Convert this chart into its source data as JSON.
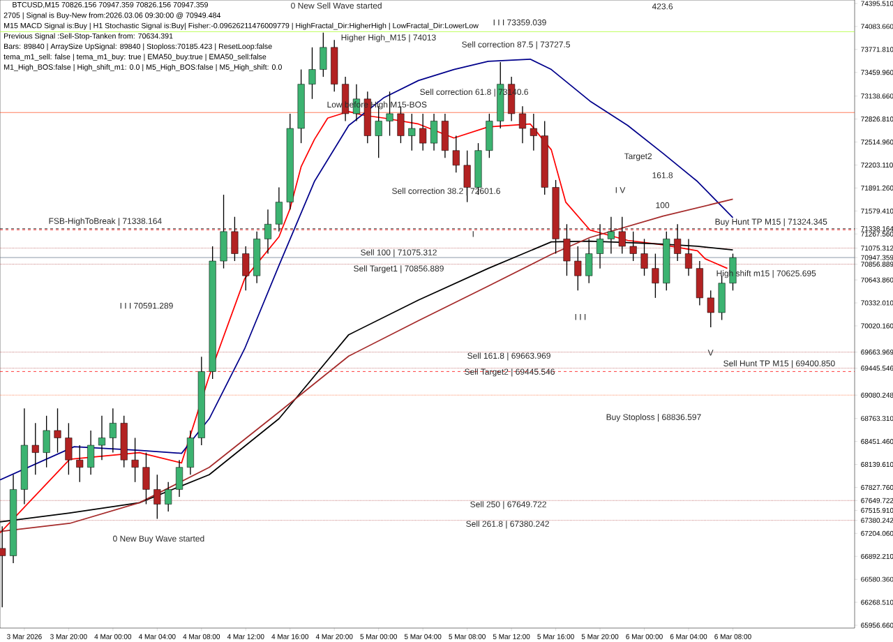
{
  "chart_data": {
    "type": "candlestick",
    "title": "BTCUSD,M15  70826.156 70947.359 70826.156 70947.359",
    "x": [
      "2026-03-03T14:00",
      "2026-03-03T15:00",
      "2026-03-03T16:00",
      "2026-03-03T17:00",
      "2026-03-03T18:00",
      "2026-03-03T19:00",
      "2026-03-03T20:00",
      "2026-03-03T21:00",
      "2026-03-03T22:00",
      "2026-03-03T23:00",
      "2026-03-04T00:00",
      "2026-03-04T01:00",
      "2026-03-04T02:00",
      "2026-03-04T03:00",
      "2026-03-04T04:00",
      "2026-03-04T05:00",
      "2026-03-04T06:00",
      "2026-03-04T07:00",
      "2026-03-04T08:00",
      "2026-03-04T09:00",
      "2026-03-04T10:00",
      "2026-03-04T11:00",
      "2026-03-04T12:00",
      "2026-03-04T13:00",
      "2026-03-04T14:00",
      "2026-03-04T15:00",
      "2026-03-04T16:00",
      "2026-03-04T17:00",
      "2026-03-04T18:00",
      "2026-03-04T19:00",
      "2026-03-04T20:00",
      "2026-03-04T21:00",
      "2026-03-04T22:00",
      "2026-03-04T23:00",
      "2026-03-05T00:00",
      "2026-03-05T01:00",
      "2026-03-05T02:00",
      "2026-03-05T03:00",
      "2026-03-05T04:00",
      "2026-03-05T05:00",
      "2026-03-05T06:00",
      "2026-03-05T07:00",
      "2026-03-05T08:00",
      "2026-03-05T09:00",
      "2026-03-05T10:00",
      "2026-03-05T11:00",
      "2026-03-05T12:00",
      "2026-03-05T13:00",
      "2026-03-05T14:00",
      "2026-03-05T15:00",
      "2026-03-05T16:00",
      "2026-03-05T17:00",
      "2026-03-05T18:00",
      "2026-03-05T19:00",
      "2026-03-05T20:00",
      "2026-03-05T21:00",
      "2026-03-05T22:00",
      "2026-03-05T23:00",
      "2026-03-06T00:00",
      "2026-03-06T01:00",
      "2026-03-06T02:00",
      "2026-03-06T03:00",
      "2026-03-06T04:00",
      "2026-03-06T05:00",
      "2026-03-06T06:00",
      "2026-03-06T07:00",
      "2026-03-06T08:00"
    ],
    "ohlc": [
      [
        67000,
        67300,
        66200,
        66900
      ],
      [
        66900,
        68000,
        66800,
        67800
      ],
      [
        67800,
        68900,
        67600,
        68400
      ],
      [
        68400,
        68700,
        68000,
        68300
      ],
      [
        68300,
        68800,
        68100,
        68600
      ],
      [
        68600,
        68900,
        68300,
        68500
      ],
      [
        68500,
        68700,
        68000,
        68200
      ],
      [
        68200,
        68400,
        67900,
        68100
      ],
      [
        68100,
        68600,
        68000,
        68400
      ],
      [
        68400,
        68800,
        68200,
        68500
      ],
      [
        68500,
        68900,
        68300,
        68700
      ],
      [
        68700,
        68800,
        68100,
        68200
      ],
      [
        68200,
        68500,
        67900,
        68100
      ],
      [
        68100,
        68300,
        67600,
        67800
      ],
      [
        67800,
        68000,
        67400,
        67600
      ],
      [
        67600,
        67900,
        67500,
        67800
      ],
      [
        67800,
        68200,
        67700,
        68100
      ],
      [
        68100,
        68600,
        68000,
        68500
      ],
      [
        68500,
        69600,
        68400,
        69400
      ],
      [
        69400,
        71100,
        69300,
        70900
      ],
      [
        70900,
        71800,
        70800,
        71300
      ],
      [
        71300,
        71500,
        70900,
        71000
      ],
      [
        71000,
        71100,
        70500,
        70700
      ],
      [
        70700,
        71300,
        70600,
        71200
      ],
      [
        71200,
        71600,
        71000,
        71400
      ],
      [
        71400,
        71900,
        71300,
        71700
      ],
      [
        71700,
        72900,
        71600,
        72700
      ],
      [
        72700,
        73500,
        72500,
        73300
      ],
      [
        73300,
        73800,
        73100,
        73500
      ],
      [
        73500,
        74000,
        73400,
        73800
      ],
      [
        73800,
        73900,
        73200,
        73300
      ],
      [
        73300,
        73400,
        72800,
        72900
      ],
      [
        72900,
        73300,
        72800,
        73100
      ],
      [
        73100,
        73200,
        72500,
        72600
      ],
      [
        72600,
        73000,
        72300,
        72800
      ],
      [
        72800,
        73200,
        72600,
        72900
      ],
      [
        72900,
        73000,
        72500,
        72600
      ],
      [
        72600,
        72900,
        72400,
        72700
      ],
      [
        72700,
        72900,
        72400,
        72500
      ],
      [
        72500,
        72900,
        72400,
        72800
      ],
      [
        72800,
        72900,
        72300,
        72400
      ],
      [
        72400,
        72600,
        72100,
        72200
      ],
      [
        72200,
        72400,
        71700,
        71900
      ],
      [
        71900,
        72500,
        71800,
        72400
      ],
      [
        72400,
        72900,
        72300,
        72800
      ],
      [
        72800,
        73600,
        72700,
        73300
      ],
      [
        73300,
        73400,
        72800,
        72900
      ],
      [
        72900,
        73000,
        72500,
        72700
      ],
      [
        72700,
        72900,
        72400,
        72600
      ],
      [
        72600,
        72800,
        71800,
        71900
      ],
      [
        71900,
        72000,
        71000,
        71200
      ],
      [
        71200,
        71400,
        70700,
        70900
      ],
      [
        70900,
        71100,
        70500,
        70700
      ],
      [
        70700,
        71200,
        70600,
        71000
      ],
      [
        71000,
        71400,
        70800,
        71200
      ],
      [
        71200,
        71500,
        71000,
        71300
      ],
      [
        71300,
        71500,
        71000,
        71100
      ],
      [
        71100,
        71300,
        70900,
        71000
      ],
      [
        71000,
        71200,
        70700,
        70800
      ],
      [
        70800,
        71000,
        70400,
        70600
      ],
      [
        70600,
        71300,
        70500,
        71200
      ],
      [
        71200,
        71400,
        70900,
        71000
      ],
      [
        71000,
        71200,
        70700,
        70800
      ],
      [
        70800,
        70900,
        70300,
        70400
      ],
      [
        70400,
        70500,
        70000,
        70200
      ],
      [
        70200,
        70700,
        70100,
        70600
      ],
      [
        70600,
        71000,
        70500,
        70947
      ]
    ],
    "colors": [
      "#b22222",
      "#3cb371",
      "#3cb371",
      "#b22222",
      "#3cb371",
      "#b22222",
      "#b22222",
      "#b22222",
      "#3cb371",
      "#3cb371",
      "#3cb371",
      "#b22222",
      "#b22222",
      "#b22222",
      "#b22222",
      "#3cb371",
      "#3cb371",
      "#3cb371",
      "#3cb371",
      "#3cb371",
      "#3cb371",
      "#b22222",
      "#b22222",
      "#3cb371",
      "#3cb371",
      "#3cb371",
      "#3cb371",
      "#3cb371",
      "#3cb371",
      "#3cb371",
      "#b22222",
      "#b22222",
      "#3cb371",
      "#b22222",
      "#3cb371",
      "#3cb371",
      "#b22222",
      "#3cb371",
      "#b22222",
      "#3cb371",
      "#b22222",
      "#b22222",
      "#b22222",
      "#3cb371",
      "#3cb371",
      "#3cb371",
      "#b22222",
      "#b22222",
      "#b22222",
      "#b22222",
      "#b22222",
      "#b22222",
      "#b22222",
      "#3cb371",
      "#3cb371",
      "#3cb371",
      "#b22222",
      "#b22222",
      "#b22222",
      "#b22222",
      "#3cb371",
      "#b22222",
      "#b22222",
      "#b22222",
      "#b22222",
      "#3cb371",
      "#3cb371"
    ],
    "series": [
      {
        "type": "line",
        "color": "#ff0000",
        "x": [
          "2026-03-03T13:48",
          "2026-03-03T20:06",
          "2026-03-04T02:24",
          "2026-03-04T06:12",
          "2026-03-04T08:42",
          "2026-03-04T11:54",
          "2026-03-04T15:00",
          "2026-03-04T16:00",
          "2026-03-04T17:00",
          "2026-03-04T18:12",
          "2026-03-04T19:24",
          "2026-03-04T21:18",
          "2026-03-04T22:36",
          "2026-03-05T00:30",
          "2026-03-05T03:36",
          "2026-03-05T06:48",
          "2026-03-05T09:54",
          "2026-03-05T13:42",
          "2026-03-05T15:36",
          "2026-03-05T16:54",
          "2026-03-05T19:06",
          "2026-03-05T22:30",
          "2026-03-06T01:42",
          "2026-03-06T04:48",
          "2026-03-06T05:30",
          "2026-03-06T07:30"
        ],
        "values": [
          67210,
          68210,
          68300,
          68160,
          69340,
          70660,
          71230,
          71610,
          72180,
          72550,
          72840,
          72930,
          72880,
          72840,
          72760,
          72570,
          72720,
          72760,
          72410,
          71700,
          71320,
          71180,
          71120,
          71040,
          70930,
          70800
        ]
      },
      {
        "type": "line",
        "color": "#00008b",
        "x": [
          "2026-03-03T13:48",
          "2026-03-03T20:30",
          "2026-03-04T02:24",
          "2026-03-04T06:12",
          "2026-03-04T08:42",
          "2026-03-04T11:54",
          "2026-03-04T15:00",
          "2026-03-04T18:12",
          "2026-03-04T21:18",
          "2026-03-05T00:30",
          "2026-03-05T03:36",
          "2026-03-05T06:48",
          "2026-03-05T09:54",
          "2026-03-05T13:42",
          "2026-03-05T15:36",
          "2026-03-05T19:06",
          "2026-03-05T22:30",
          "2026-03-06T01:42",
          "2026-03-06T04:48",
          "2026-03-06T08:00"
        ],
        "values": [
          67930,
          68380,
          68330,
          68290,
          68760,
          69710,
          70840,
          71980,
          72740,
          73120,
          73350,
          73500,
          73610,
          73640,
          73500,
          73070,
          72740,
          72360,
          71980,
          71490
        ]
      },
      {
        "type": "line",
        "color": "#000000",
        "x": [
          "2026-03-03T13:48",
          "2026-03-03T20:06",
          "2026-03-04T02:24",
          "2026-03-04T08:42",
          "2026-03-04T15:00",
          "2026-03-04T21:18",
          "2026-03-05T03:36",
          "2026-03-05T09:54",
          "2026-03-05T15:36",
          "2026-03-05T19:06",
          "2026-03-05T22:30",
          "2026-03-06T01:42",
          "2026-03-06T04:48",
          "2026-03-06T08:00"
        ],
        "values": [
          67360,
          67480,
          67620,
          68000,
          68760,
          69900,
          70370,
          70800,
          71160,
          71170,
          71150,
          71130,
          71100,
          71050
        ]
      },
      {
        "type": "line",
        "color": "#a52a2a",
        "x": [
          "2026-03-03T13:48",
          "2026-03-03T20:06",
          "2026-03-04T02:24",
          "2026-03-04T08:42",
          "2026-03-04T15:00",
          "2026-03-04T21:18",
          "2026-03-05T03:36",
          "2026-03-05T09:54",
          "2026-03-05T15:36",
          "2026-03-05T19:06",
          "2026-03-06T01:42",
          "2026-03-06T08:00"
        ],
        "values": [
          67230,
          67340,
          67620,
          68100,
          68850,
          69610,
          70090,
          70560,
          70990,
          71220,
          71510,
          71740
        ]
      }
    ],
    "xlim": [
      "2026-03-03T13:48",
      "2026-03-06T19:00"
    ],
    "ylim": [
      65919,
      74443
    ],
    "xticks": [
      {
        "value": "2026-03-03T16:00",
        "label": "3 Mar 2026"
      },
      {
        "value": "2026-03-03T20:00",
        "label": "3 Mar 20:00"
      },
      {
        "value": "2026-03-04T00:00",
        "label": "4 Mar 00:00"
      },
      {
        "value": "2026-03-04T04:00",
        "label": "4 Mar 04:00"
      },
      {
        "value": "2026-03-04T08:00",
        "label": "4 Mar 08:00"
      },
      {
        "value": "2026-03-04T12:00",
        "label": "4 Mar 12:00"
      },
      {
        "value": "2026-03-04T16:00",
        "label": "4 Mar 16:00"
      },
      {
        "value": "2026-03-04T20:00",
        "label": "4 Mar 20:00"
      },
      {
        "value": "2026-03-05T00:00",
        "label": "5 Mar 00:00"
      },
      {
        "value": "2026-03-05T04:00",
        "label": "5 Mar 04:00"
      },
      {
        "value": "2026-03-05T08:00",
        "label": "5 Mar 08:00"
      },
      {
        "value": "2026-03-05T12:00",
        "label": "5 Mar 12:00"
      },
      {
        "value": "2026-03-05T16:00",
        "label": "5 Mar 16:00"
      },
      {
        "value": "2026-03-05T20:00",
        "label": "5 Mar 20:00"
      },
      {
        "value": "2026-03-06T00:00",
        "label": "6 Mar 00:00"
      },
      {
        "value": "2026-03-06T04:00",
        "label": "6 Mar 04:00"
      },
      {
        "value": "2026-03-06T08:00",
        "label": "6 Mar 08:00"
      }
    ],
    "yticks": [
      {
        "value": 74395.51,
        "label": "74395.510"
      },
      {
        "value": 74083.66,
        "label": "74083.660"
      },
      {
        "value": 73771.81,
        "label": "73771.810"
      },
      {
        "value": 73459.96,
        "label": "73459.960"
      },
      {
        "value": 73138.66,
        "label": "73138.660"
      },
      {
        "value": 72826.81,
        "label": "72826.810"
      },
      {
        "value": 72514.96,
        "label": "72514.960"
      },
      {
        "value": 72203.11,
        "label": "72203.110"
      },
      {
        "value": 71891.26,
        "label": "71891.260"
      },
      {
        "value": 71579.41,
        "label": "71579.410"
      },
      {
        "value": 71338.164,
        "label": "71338.164"
      },
      {
        "value": 71267.56,
        "label": "71267.560"
      },
      {
        "value": 71075.312,
        "label": "71075.312"
      },
      {
        "value": 70947.359,
        "label": "70947.359"
      },
      {
        "value": 70856.889,
        "label": "70856.889"
      },
      {
        "value": 70643.86,
        "label": "70643.860"
      },
      {
        "value": 70332.01,
        "label": "70332.010"
      },
      {
        "value": 70020.16,
        "label": "70020.160"
      },
      {
        "value": 69663.969,
        "label": "69663.969"
      },
      {
        "value": 69445.546,
        "label": "69445.546"
      },
      {
        "value": 69080.248,
        "label": "69080.248"
      },
      {
        "value": 68763.31,
        "label": "68763.310"
      },
      {
        "value": 68451.46,
        "label": "68451.460"
      },
      {
        "value": 68139.61,
        "label": "68139.610"
      },
      {
        "value": 67827.76,
        "label": "67827.760"
      },
      {
        "value": 67649.722,
        "label": "67649.722"
      },
      {
        "value": 67515.91,
        "label": "67515.910"
      },
      {
        "value": 67380.242,
        "label": "67380.242"
      },
      {
        "value": 67204.06,
        "label": "67204.060"
      },
      {
        "value": 66892.21,
        "label": "66892.210"
      },
      {
        "value": 66580.36,
        "label": "66580.360"
      },
      {
        "value": 66268.51,
        "label": "66268.510"
      },
      {
        "value": 65956.66,
        "label": "65956.660"
      }
    ],
    "ref_lines": [
      {
        "axis": "y",
        "value": 74013,
        "color": "#adff2f",
        "line_style": "solid"
      },
      {
        "axis": "y",
        "value": 72917,
        "color": "#ff3300",
        "line_style": "solid"
      },
      {
        "axis": "y",
        "value": 71338.164,
        "color": "#000000",
        "line_style": "dashed"
      },
      {
        "axis": "y",
        "value": 71324.345,
        "color": "#ff0000",
        "line_style": "dashed"
      },
      {
        "axis": "y",
        "value": 71075.312,
        "color": "#a52a2a",
        "line_style": "dotted"
      },
      {
        "axis": "y",
        "value": 70947.359,
        "color": "#708090",
        "line_style": "solid"
      },
      {
        "axis": "y",
        "value": 70856.889,
        "color": "#a52a2a",
        "line_style": "dotted"
      },
      {
        "axis": "y",
        "value": 69663.969,
        "color": "#a52a2a",
        "line_style": "dotted"
      },
      {
        "axis": "y",
        "value": 69445.546,
        "color": "#a52a2a",
        "line_style": "dotted"
      },
      {
        "axis": "y",
        "value": 69400.85,
        "color": "#ff0000",
        "line_style": "dashed"
      },
      {
        "axis": "y",
        "value": 69080.248,
        "color": "#ff4500",
        "line_style": "dotted"
      },
      {
        "axis": "y",
        "value": 67649.722,
        "color": "#a52a2a",
        "line_style": "dotted"
      },
      {
        "axis": "y",
        "value": 67380.242,
        "color": "#a52a2a",
        "line_style": "dotted"
      }
    ],
    "annotations": [
      "2705 | Signal is Buy-New from:2026.03.06 09:30:00 @ 70949.484",
      "M15 MACD Signal is:Buy | H1 Stochastic Signal is:Buy| Fisher:-0.09626211476009779 | HighFractal_Dir:HigherHigh | LowFractal_Dir:LowerLow",
      "Previous Signal :Sell-Stop-Tanken from: 70634.391",
      "Bars: 89840 | ArraySize UpSignal: 89840 | Stoploss:70185.423 | ResetLoop:false",
      "tema_m1_sell: false | tema_m1_buy: true | EMA50_buy:true | EMA50_sell:false",
      "M1_High_BOS:false | High_shift_m1: 0.0 | M5_High_BOS:false | M5_High_shift: 0.0",
      "0 New Sell Wave started",
      "Higher High_M15 | 74013",
      "I I I 73359.039",
      "Sell correction 87.5 | 73727.5",
      "Sell correction 61.8 | 73140.6",
      "Sell correction 38.2 | 72601.6",
      "Low before High M15-BOS",
      "FSB-HighToBreak | 71338.164",
      "I I I 70591.289",
      "0 New Buy Wave started",
      "423.6",
      "Target2",
      "161.8",
      "100",
      "I V",
      "I",
      "I I I",
      "V",
      "Sell 100 | 71075.312",
      "Sell Target1 | 70856.889",
      "Sell 161.8 | 69663.969",
      "Sell Target2 | 69445.546",
      "Sell 250 | 67649.722",
      "Sell 261.8 | 67380.242",
      "Buy Hunt TP M15 | 71324.345",
      "Sell Hunt TP M15 | 69400.850",
      "High shift m15 | 70625.695",
      "Buy Stoploss | 68836.597"
    ]
  }
}
